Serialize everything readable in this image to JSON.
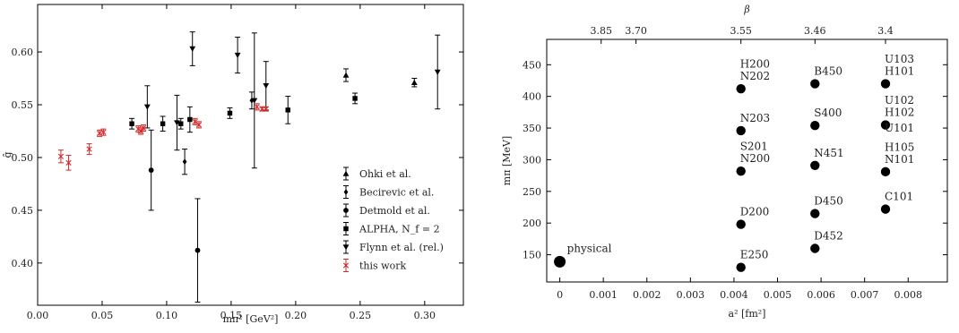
{
  "chart_data": [
    {
      "type": "scatter",
      "xlabel": "mπ² [GeV²]",
      "ylabel": "ĝ",
      "xlim": [
        0.0,
        0.33
      ],
      "ylim": [
        0.36,
        0.645
      ],
      "xticks": [
        "0.00",
        "0.05",
        "0.10",
        "0.15",
        "0.20",
        "0.25",
        "0.30"
      ],
      "yticks": [
        "0.40",
        "0.45",
        "0.50",
        "0.55",
        "0.60"
      ],
      "legend_position": "bottom-right",
      "series": [
        {
          "name": "Ohki et al.",
          "marker": "triangle-up",
          "color": "#000000",
          "points": [
            {
              "x": 0.239,
              "y": 0.578,
              "err": 0.006
            },
            {
              "x": 0.292,
              "y": 0.571,
              "err": 0.004
            }
          ]
        },
        {
          "name": "Becirevic et al.",
          "marker": "diamond",
          "color": "#000000",
          "points": [
            {
              "x": 0.114,
              "y": 0.496,
              "err": 0.012
            },
            {
              "x": 0.166,
              "y": 0.554,
              "err": 0.008
            }
          ]
        },
        {
          "name": "Detmold et al.",
          "marker": "circle",
          "color": "#000000",
          "points": [
            {
              "x": 0.088,
              "y": 0.488,
              "err": 0.038
            },
            {
              "x": 0.124,
              "y": 0.412,
              "err": 0.049
            }
          ]
        },
        {
          "name": "ALPHA, N_f = 2",
          "marker": "square",
          "color": "#000000",
          "points": [
            {
              "x": 0.073,
              "y": 0.532,
              "err": 0.005
            },
            {
              "x": 0.097,
              "y": 0.532,
              "err": 0.007
            },
            {
              "x": 0.111,
              "y": 0.532,
              "err": 0.005
            },
            {
              "x": 0.118,
              "y": 0.536,
              "err": 0.012
            },
            {
              "x": 0.149,
              "y": 0.542,
              "err": 0.005
            },
            {
              "x": 0.194,
              "y": 0.545,
              "err": 0.013
            },
            {
              "x": 0.246,
              "y": 0.556,
              "err": 0.005
            }
          ]
        },
        {
          "name": "Flynn et al. (rel.)",
          "marker": "triangle-down",
          "color": "#000000",
          "points": [
            {
              "x": 0.085,
              "y": 0.548,
              "err": 0.02
            },
            {
              "x": 0.108,
              "y": 0.533,
              "err": 0.026
            },
            {
              "x": 0.12,
              "y": 0.603,
              "err": 0.016
            },
            {
              "x": 0.155,
              "y": 0.597,
              "err": 0.017
            },
            {
              "x": 0.168,
              "y": 0.554,
              "err": 0.064
            },
            {
              "x": 0.177,
              "y": 0.568,
              "err": 0.023
            },
            {
              "x": 0.31,
              "y": 0.581,
              "err": 0.035
            }
          ]
        },
        {
          "name": "this work",
          "marker": "x",
          "color": "#d62728",
          "points": [
            {
              "x": 0.018,
              "y": 0.501,
              "err": 0.006
            },
            {
              "x": 0.024,
              "y": 0.495,
              "err": 0.007
            },
            {
              "x": 0.04,
              "y": 0.508,
              "err": 0.005
            },
            {
              "x": 0.048,
              "y": 0.523,
              "err": 0.003
            },
            {
              "x": 0.051,
              "y": 0.524,
              "err": 0.003
            },
            {
              "x": 0.078,
              "y": 0.527,
              "err": 0.003
            },
            {
              "x": 0.08,
              "y": 0.525,
              "err": 0.003
            },
            {
              "x": 0.082,
              "y": 0.528,
              "err": 0.003
            },
            {
              "x": 0.122,
              "y": 0.534,
              "err": 0.003
            },
            {
              "x": 0.125,
              "y": 0.531,
              "err": 0.003
            },
            {
              "x": 0.17,
              "y": 0.548,
              "err": 0.003
            },
            {
              "x": 0.174,
              "y": 0.546,
              "err": 0.002
            },
            {
              "x": 0.177,
              "y": 0.546,
              "err": 0.002
            }
          ]
        }
      ]
    },
    {
      "type": "scatter",
      "xlabel": "a² [fm²]",
      "ylabel": "mπ [MeV]",
      "toplabel": "β",
      "xlim": [
        -0.0003,
        0.0089
      ],
      "ylim": [
        107,
        490
      ],
      "xticks": [
        {
          "v": 0,
          "t": "0"
        },
        {
          "v": 0.001,
          "t": "0.001"
        },
        {
          "v": 0.002,
          "t": "0.002"
        },
        {
          "v": 0.003,
          "t": "0.003"
        },
        {
          "v": 0.004,
          "t": "0.004"
        },
        {
          "v": 0.005,
          "t": "0.005"
        },
        {
          "v": 0.006,
          "t": "0.006"
        },
        {
          "v": 0.007,
          "t": "0.007"
        },
        {
          "v": 0.008,
          "t": "0.008"
        }
      ],
      "yticks": [
        "150",
        "200",
        "250",
        "300",
        "350",
        "400",
        "450"
      ],
      "top_ticks": [
        {
          "a2": 0.00095,
          "label": "3.85"
        },
        {
          "a2": 0.00175,
          "label": "3.70"
        },
        {
          "a2": 0.00416,
          "label": "3.55"
        },
        {
          "a2": 0.00586,
          "label": "3.46"
        },
        {
          "a2": 0.00748,
          "label": "3.4"
        }
      ],
      "points": [
        {
          "x": 0.0,
          "y": 139,
          "labels": [
            "physical"
          ],
          "big": true
        },
        {
          "x": 0.00416,
          "y": 412,
          "labels": [
            "H200",
            "N202"
          ]
        },
        {
          "x": 0.00416,
          "y": 346,
          "labels": [
            "N203"
          ]
        },
        {
          "x": 0.00416,
          "y": 282,
          "labels": [
            "S201",
            "N200"
          ]
        },
        {
          "x": 0.00416,
          "y": 198,
          "labels": [
            "D200"
          ]
        },
        {
          "x": 0.00416,
          "y": 130,
          "labels": [
            "E250"
          ]
        },
        {
          "x": 0.00586,
          "y": 420,
          "labels": [
            "B450"
          ]
        },
        {
          "x": 0.00586,
          "y": 354,
          "labels": [
            "S400"
          ]
        },
        {
          "x": 0.00586,
          "y": 291,
          "labels": [
            "N451"
          ]
        },
        {
          "x": 0.00586,
          "y": 215,
          "labels": [
            "D450"
          ]
        },
        {
          "x": 0.00586,
          "y": 160,
          "labels": [
            "D452"
          ]
        },
        {
          "x": 0.00748,
          "y": 420,
          "labels": [
            "U103",
            "H101"
          ]
        },
        {
          "x": 0.00748,
          "y": 355,
          "labels": [
            "U102",
            "H102",
            "U101"
          ]
        },
        {
          "x": 0.00748,
          "y": 281,
          "labels": [
            "H105",
            "N101"
          ]
        },
        {
          "x": 0.00748,
          "y": 222,
          "labels": [
            "C101"
          ]
        }
      ]
    }
  ]
}
